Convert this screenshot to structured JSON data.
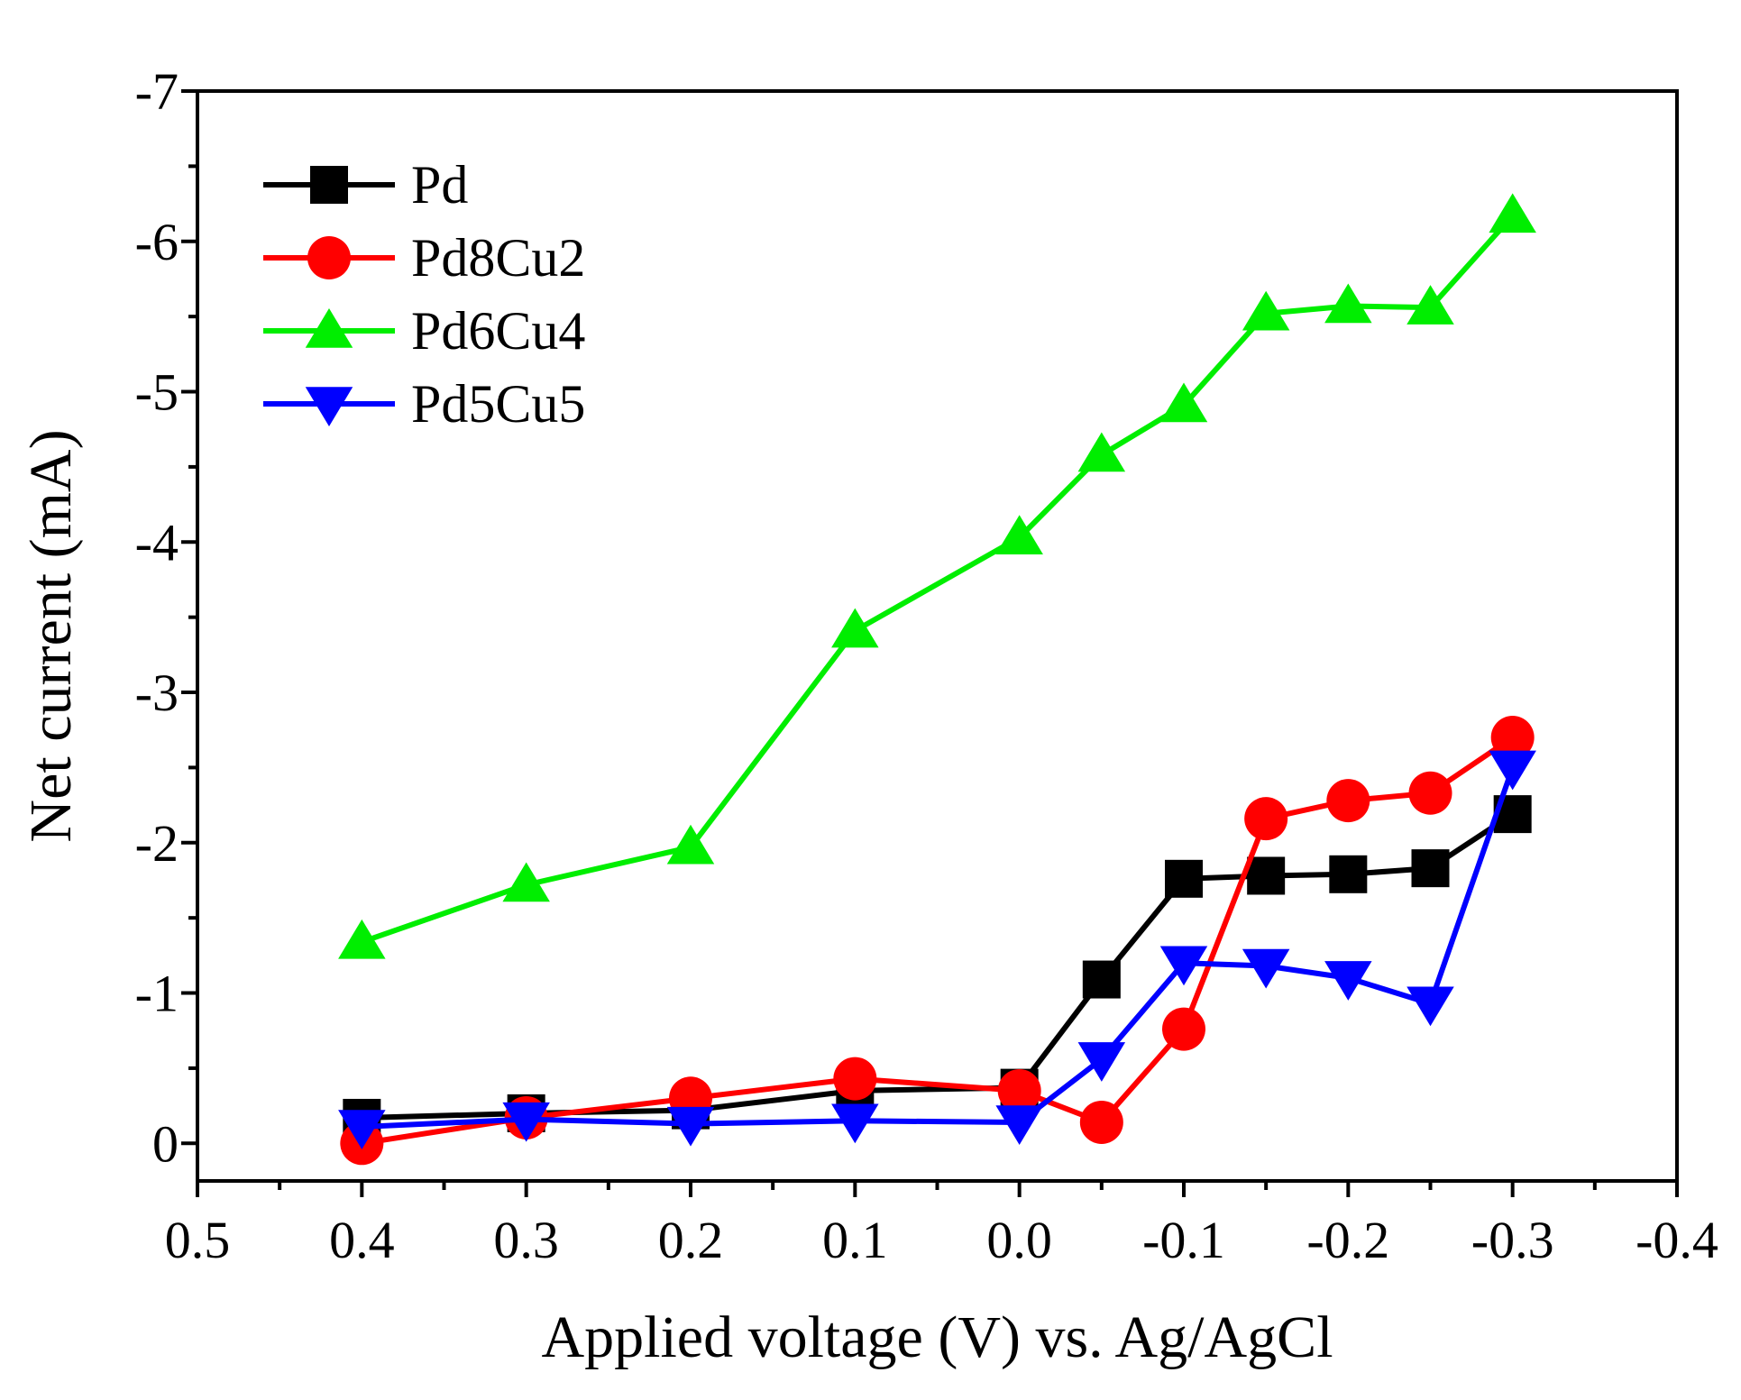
{
  "chart_data": {
    "type": "line",
    "title": "",
    "xlabel": "Applied voltage (V) vs. Ag/AgCl",
    "ylabel": "Net current (mA)",
    "xlim": [
      0.5,
      -0.4
    ],
    "ylim": [
      0.25,
      -7
    ],
    "x_ticks": [
      0.5,
      0.4,
      0.3,
      0.2,
      0.1,
      0.0,
      -0.1,
      -0.2,
      -0.3,
      -0.4
    ],
    "x_tick_labels": [
      "0.5",
      "0.4",
      "0.3",
      "0.2",
      "0.1",
      "0.0",
      "-0.1",
      "-0.2",
      "-0.3",
      "-0.4"
    ],
    "y_ticks": [
      0,
      -1,
      -2,
      -3,
      -4,
      -5,
      -6,
      -7
    ],
    "y_tick_labels": [
      "0",
      "-1",
      "-2",
      "-3",
      "-4",
      "-5",
      "-6",
      "-7"
    ],
    "grid": false,
    "legend_position": "top-left",
    "x": [
      0.4,
      0.3,
      0.2,
      0.1,
      0.0,
      -0.05,
      -0.1,
      -0.15,
      -0.2,
      -0.25,
      -0.3
    ],
    "series": [
      {
        "name": "Pd",
        "color": "#000000",
        "marker": "square",
        "values": [
          -0.17,
          -0.2,
          -0.22,
          -0.35,
          -0.37,
          -1.09,
          -1.76,
          -1.78,
          -1.79,
          -1.83,
          -2.19
        ]
      },
      {
        "name": "Pd8Cu2",
        "color": "#ff0000",
        "marker": "circle",
        "values": [
          0.0,
          -0.17,
          -0.3,
          -0.43,
          -0.35,
          -0.14,
          -0.76,
          -2.16,
          -2.28,
          -2.33,
          -2.7
        ]
      },
      {
        "name": "Pd6Cu4",
        "color": "#00ee00",
        "marker": "triangle-up",
        "values": [
          -1.34,
          -1.72,
          -1.97,
          -3.41,
          -4.03,
          -4.58,
          -4.91,
          -5.52,
          -5.57,
          -5.56,
          -6.17
        ]
      },
      {
        "name": "Pd5Cu5",
        "color": "#0000ff",
        "marker": "triangle-down",
        "values": [
          -0.11,
          -0.16,
          -0.13,
          -0.15,
          -0.14,
          -0.56,
          -1.2,
          -1.18,
          -1.1,
          -0.93,
          -2.5
        ]
      }
    ]
  }
}
